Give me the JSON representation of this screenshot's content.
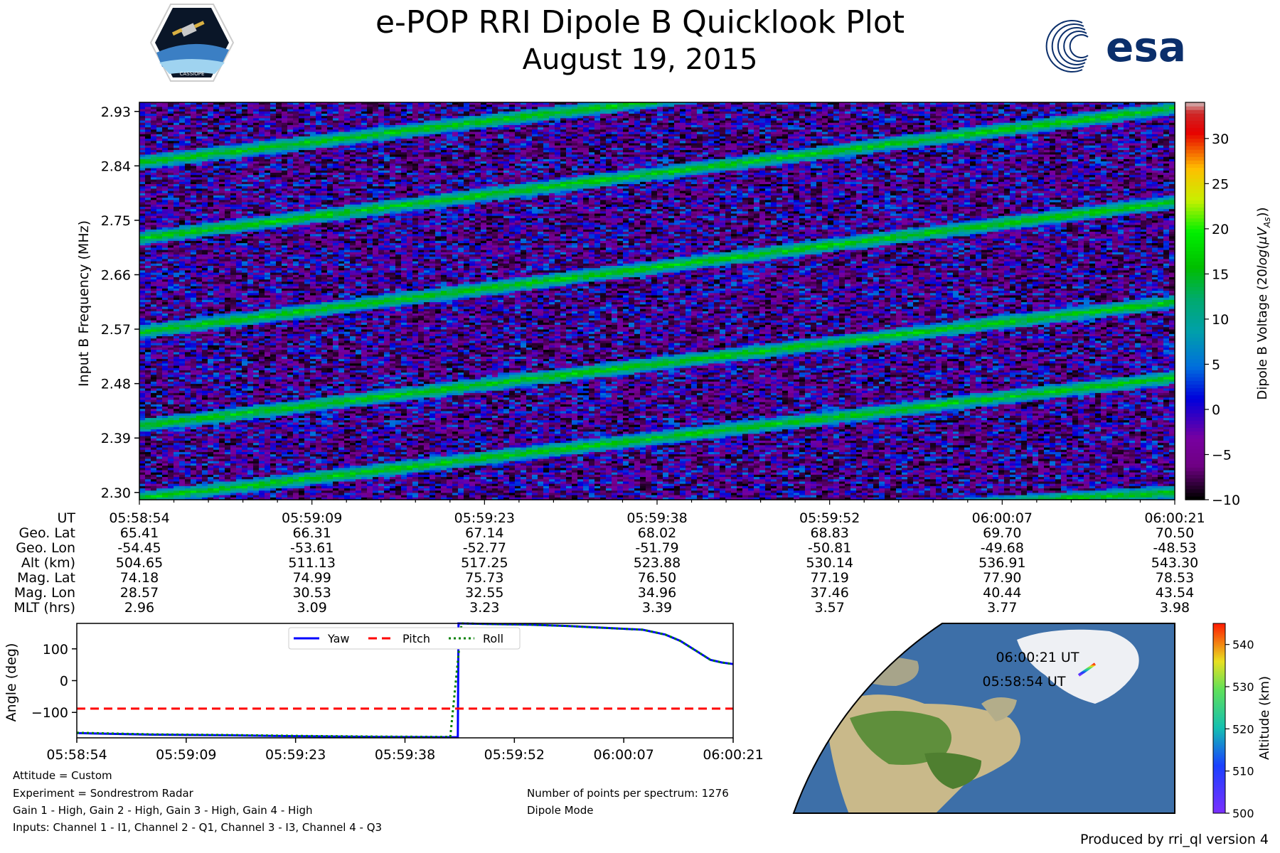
{
  "header": {
    "title": "e-POP RRI Dipole B Quicklook Plot",
    "date": "August 19, 2015",
    "left_logo": "CASSIOPE",
    "right_logo": "esa"
  },
  "chart_data": [
    {
      "type": "heatmap",
      "title": "",
      "ylabel": "Input B Frequency (MHz)",
      "yticks": [
        "2.30",
        "2.39",
        "2.48",
        "2.57",
        "2.66",
        "2.75",
        "2.84",
        "2.93"
      ],
      "ylim": [
        2.288,
        2.945
      ],
      "colorbar": {
        "label": "Dipole B Voltage (20log(μVₐs))",
        "label_parts": [
          "Dipole B Voltage (20",
          "log",
          "(",
          "μV",
          "As",
          "))"
        ],
        "ticks": [
          "−10",
          "−5",
          "0",
          "5",
          "10",
          "15",
          "20",
          "25",
          "30"
        ],
        "range": [
          -10,
          34
        ],
        "colormap": "nipy_spectral"
      },
      "traces_mhz": [
        {
          "start": 2.41,
          "end": 2.615
        },
        {
          "start": 2.565,
          "end": 2.78
        },
        {
          "start": 2.72,
          "end": 2.935
        },
        {
          "start": 2.845,
          "end": 3.05
        },
        {
          "start": 2.29,
          "end": 2.49
        },
        {
          "start": 2.2,
          "end": 2.3
        }
      ]
    },
    {
      "type": "table",
      "row_labels": [
        "UT",
        "Geo. Lat",
        "Geo. Lon",
        "Alt (km)",
        "Mag. Lat",
        "Mag. Lon",
        "MLT (hrs)"
      ],
      "columns": [
        [
          "05:58:54",
          "65.41",
          "-54.45",
          "504.65",
          "74.18",
          "28.57",
          "2.96"
        ],
        [
          "05:59:09",
          "66.31",
          "-53.61",
          "511.13",
          "74.99",
          "30.53",
          "3.09"
        ],
        [
          "05:59:23",
          "67.14",
          "-52.77",
          "517.25",
          "75.73",
          "32.55",
          "3.23"
        ],
        [
          "05:59:38",
          "68.02",
          "-51.79",
          "523.88",
          "76.50",
          "34.96",
          "3.39"
        ],
        [
          "05:59:52",
          "68.83",
          "-50.81",
          "530.14",
          "77.19",
          "37.46",
          "3.57"
        ],
        [
          "06:00:07",
          "69.70",
          "-49.68",
          "536.91",
          "77.90",
          "40.44",
          "3.77"
        ],
        [
          "06:00:21",
          "70.50",
          "-48.53",
          "543.30",
          "78.53",
          "43.54",
          "3.98"
        ]
      ]
    },
    {
      "type": "line",
      "title": "",
      "xlabel": "",
      "ylabel": "Angle (deg)",
      "xticks": [
        "05:58:54",
        "05:59:09",
        "05:59:23",
        "05:59:38",
        "05:59:52",
        "06:00:07",
        "06:00:21"
      ],
      "yticks": [
        "100",
        "0",
        "−100"
      ],
      "ylim": [
        -180,
        180
      ],
      "xlim_seconds": [
        0,
        87
      ],
      "legend": "top-center",
      "series": [
        {
          "name": "Yaw",
          "color": "#0000ff",
          "style": "solid",
          "x": [
            0,
            10,
            20,
            30,
            40,
            49,
            50.5,
            50.6,
            55,
            60,
            65,
            70,
            75,
            78,
            80,
            82,
            84,
            85.5,
            87
          ],
          "y": [
            -165,
            -170,
            -172,
            -175,
            -177,
            -178,
            -178,
            180,
            178,
            176,
            172,
            166,
            160,
            145,
            125,
            95,
            65,
            57,
            52
          ]
        },
        {
          "name": "Pitch",
          "color": "#ff0000",
          "style": "dashed",
          "x": [
            0,
            87
          ],
          "y": [
            -88,
            -88
          ]
        },
        {
          "name": "Roll",
          "color": "#008000",
          "style": "dotted",
          "x": [
            0,
            10,
            20,
            30,
            40,
            49.5,
            51,
            55,
            60,
            65,
            70,
            75,
            78,
            80,
            82,
            84,
            85.5,
            87
          ],
          "y": [
            -164,
            -169,
            -171,
            -174,
            -176,
            -177,
            180,
            178,
            176,
            172,
            166,
            160,
            145,
            125,
            95,
            65,
            57,
            52
          ]
        }
      ]
    },
    {
      "type": "scatter",
      "title": "",
      "colorbar": {
        "label": "Altitude (km)",
        "ticks": [
          "500",
          "510",
          "520",
          "530",
          "540"
        ],
        "range": [
          500,
          545
        ]
      },
      "labels": [
        "06:00:21 UT",
        "05:58:54 UT"
      ],
      "track_altitude_km": [
        504.65,
        543.3
      ]
    }
  ],
  "notes_left": [
    "Attitude = Custom",
    "Experiment = Sondrestrom Radar",
    "Gain 1 - High, Gain 2 - High, Gain 3 - High, Gain 4 - High",
    "Inputs: Channel 1 - I1, Channel 2 - Q1, Channel 3 - I3, Channel 4 - Q3"
  ],
  "notes_right": [
    "Number of points per spectrum: 1276",
    "Dipole Mode"
  ],
  "footer": {
    "credit": "Produced by rri_ql version 4"
  }
}
